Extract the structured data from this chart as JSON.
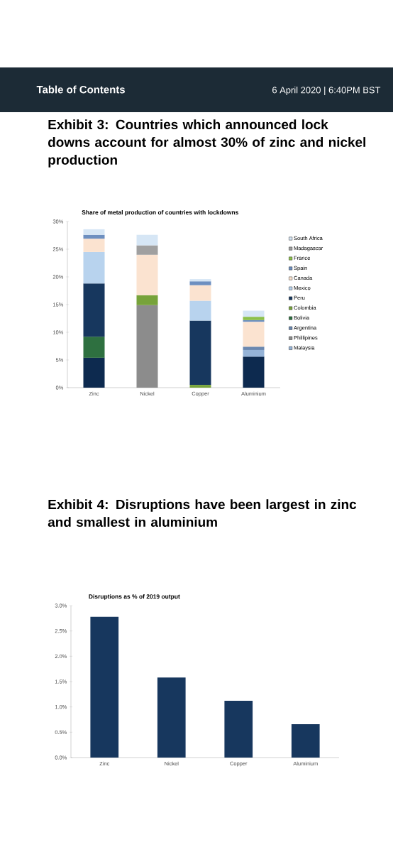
{
  "chart_data": [
    {
      "type": "bar",
      "title": "Exhibit 3: Countries which announced lock downs account for almost 30% of zinc and nickel production",
      "subtitle": "Share of metal production of countries with lockdowns",
      "annotations": [
        "Table of Contents",
        "6 April 2020 | 6:40PM BST"
      ],
      "stacked": true,
      "legend": "right",
      "categories": [
        "Zinc",
        "Nickel",
        "Copper",
        "Aluminium"
      ],
      "ylim": [
        0,
        30
      ],
      "yticks": [
        {
          "value": 0,
          "label": "0%"
        },
        {
          "value": 5,
          "label": "5%"
        },
        {
          "value": 10,
          "label": "10%"
        },
        {
          "value": 15,
          "label": "15%"
        },
        {
          "value": 20,
          "label": "20%"
        },
        {
          "value": 25,
          "label": "25%"
        },
        {
          "value": 30,
          "label": "30%"
        }
      ],
      "series": [
        {
          "color": "#0d2a4f",
          "values": [
            5.4,
            null,
            null,
            5.6
          ]
        },
        {
          "name": "Malaysia",
          "color": "#95b3d7",
          "values": [
            null,
            null,
            null,
            1.2
          ]
        },
        {
          "name": "Phillipines",
          "color": "#8c8c8c",
          "values": [
            null,
            14.9,
            null,
            null
          ]
        },
        {
          "name": "Argentina",
          "color": "#6b88b0",
          "values": [
            null,
            null,
            null,
            0.6
          ]
        },
        {
          "name": "Bolivia",
          "color": "#2e7040",
          "values": [
            3.8,
            null,
            null,
            null
          ]
        },
        {
          "name": "Colombia",
          "color": "#77a33a",
          "values": [
            null,
            1.8,
            0.5,
            null
          ]
        },
        {
          "name": "Peru",
          "color": "#17375e",
          "values": [
            9.6,
            null,
            11.6,
            null
          ]
        },
        {
          "name": "Mexico",
          "color": "#b8d3ee",
          "values": [
            5.7,
            null,
            3.6,
            null
          ]
        },
        {
          "name": "Canada",
          "color": "#fbe3d0",
          "values": [
            2.4,
            7.3,
            2.8,
            4.5
          ]
        },
        {
          "name": "Spain",
          "color": "#6d8fc0",
          "values": [
            0.7,
            null,
            0.7,
            0.3
          ]
        },
        {
          "name": "France",
          "color": "#8cc04a",
          "values": [
            null,
            null,
            null,
            0.6
          ]
        },
        {
          "name": "Madagascar",
          "color": "#a0a0a0",
          "values": [
            null,
            1.7,
            null,
            null
          ]
        },
        {
          "name": "South Africa",
          "color": "#d6e6f5",
          "values": [
            1.0,
            1.9,
            0.4,
            1.1
          ]
        }
      ]
    },
    {
      "type": "bar",
      "title": "Exhibit 4: Disruptions have been largest in zinc and smallest in aluminium",
      "subtitle": "Disruptions as % of 2019 output",
      "categories": [
        "Zinc",
        "Nickel",
        "Copper",
        "Aluminium"
      ],
      "ylim": [
        0,
        3
      ],
      "yticks": [
        {
          "value": 0,
          "label": "0.0%"
        },
        {
          "value": 0.5,
          "label": "0.5%"
        },
        {
          "value": 1,
          "label": "1.0%"
        },
        {
          "value": 1.5,
          "label": "1.5%"
        },
        {
          "value": 2,
          "label": "2.0%"
        },
        {
          "value": 2.5,
          "label": "2.5%"
        },
        {
          "value": 3,
          "label": "3.0%"
        }
      ],
      "series": [
        {
          "color": "#17375e",
          "values": [
            2.78,
            1.58,
            1.12,
            0.66
          ]
        }
      ]
    }
  ]
}
